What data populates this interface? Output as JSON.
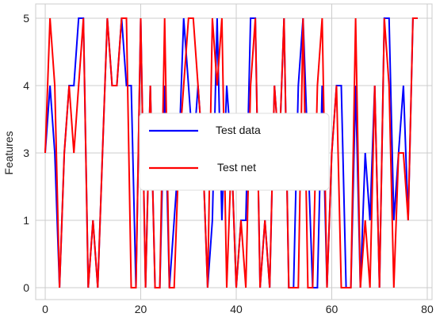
{
  "chart_data": {
    "type": "line",
    "title": "",
    "xlabel": "",
    "ylabel": "Features",
    "xlim": [
      -2,
      81
    ],
    "y_categories": [
      "0",
      "1",
      "3",
      "4",
      "5"
    ],
    "xticks": [
      0,
      20,
      40,
      60,
      80
    ],
    "grid": true,
    "legend_position": "center",
    "series": [
      {
        "name": "Test data",
        "color": "#0000ff",
        "x": [
          0,
          1,
          2,
          3,
          4,
          5,
          6,
          7,
          8,
          9,
          10,
          11,
          12,
          13,
          14,
          15,
          16,
          17,
          18,
          19,
          20,
          21,
          22,
          23,
          24,
          25,
          26,
          27,
          28,
          29,
          30,
          31,
          32,
          33,
          34,
          35,
          36,
          37,
          38,
          39,
          40,
          41,
          42,
          43,
          44,
          45,
          46,
          47,
          48,
          49,
          50,
          51,
          52,
          53,
          54,
          55,
          56,
          57,
          58,
          59,
          60,
          61,
          62,
          63,
          64,
          65,
          66,
          67,
          68,
          69,
          70,
          71,
          72,
          73,
          74,
          75,
          76,
          77,
          78
        ],
        "y": [
          "3",
          "4",
          "3",
          "0",
          "3",
          "4",
          "4",
          "5",
          "5",
          "0",
          "1",
          "0",
          "3",
          "5",
          "4",
          "4",
          "5",
          "4",
          "4",
          "0",
          "5",
          "0",
          "4",
          "0",
          "0",
          "4",
          "0",
          "1",
          "3",
          "5",
          "4",
          "3",
          "4",
          "3",
          "0",
          "1",
          "5",
          "1",
          "4",
          "3",
          "0",
          "1",
          "1",
          "5",
          "5",
          "0",
          "1",
          "0",
          "4",
          "3",
          "5",
          "0",
          "0",
          "4",
          "5",
          "3",
          "0",
          "0",
          "4",
          "0",
          "3",
          "4",
          "4",
          "0",
          "0",
          "4",
          "0",
          "3",
          "1",
          "4",
          "0",
          "5",
          "5",
          "1",
          "3",
          "4",
          "1",
          "5",
          "5"
        ]
      },
      {
        "name": "Test net",
        "color": "#ff0000",
        "x": [
          0,
          1,
          2,
          3,
          4,
          5,
          6,
          7,
          8,
          9,
          10,
          11,
          12,
          13,
          14,
          15,
          16,
          17,
          18,
          19,
          20,
          21,
          22,
          23,
          24,
          25,
          26,
          27,
          28,
          29,
          30,
          31,
          32,
          33,
          34,
          35,
          36,
          37,
          38,
          39,
          40,
          41,
          42,
          43,
          44,
          45,
          46,
          47,
          48,
          49,
          50,
          51,
          52,
          53,
          54,
          55,
          56,
          57,
          58,
          59,
          60,
          61,
          62,
          63,
          64,
          65,
          66,
          67,
          68,
          69,
          70,
          71,
          72,
          73,
          74,
          75,
          76,
          77,
          78
        ],
        "y": [
          "3",
          "5",
          "4",
          "0",
          "3",
          "4",
          "3",
          "4",
          "5",
          "0",
          "1",
          "0",
          "3",
          "5",
          "4",
          "4",
          "5",
          "5",
          "0",
          "0",
          "5",
          "0",
          "4",
          "0",
          "0",
          "5",
          "0",
          "0",
          "3",
          "4",
          "5",
          "5",
          "4",
          "3",
          "0",
          "5",
          "4",
          "5",
          "0",
          "3",
          "0",
          "1",
          "0",
          "4",
          "5",
          "0",
          "1",
          "0",
          "4",
          "3",
          "5",
          "0",
          "0",
          "0",
          "5",
          "0",
          "0",
          "4",
          "5",
          "0",
          "3",
          "4",
          "0",
          "0",
          "0",
          "5",
          "0",
          "1",
          "0",
          "4",
          "0",
          "5",
          "4",
          "0",
          "3",
          "3",
          "1",
          "5",
          "5"
        ]
      }
    ]
  }
}
